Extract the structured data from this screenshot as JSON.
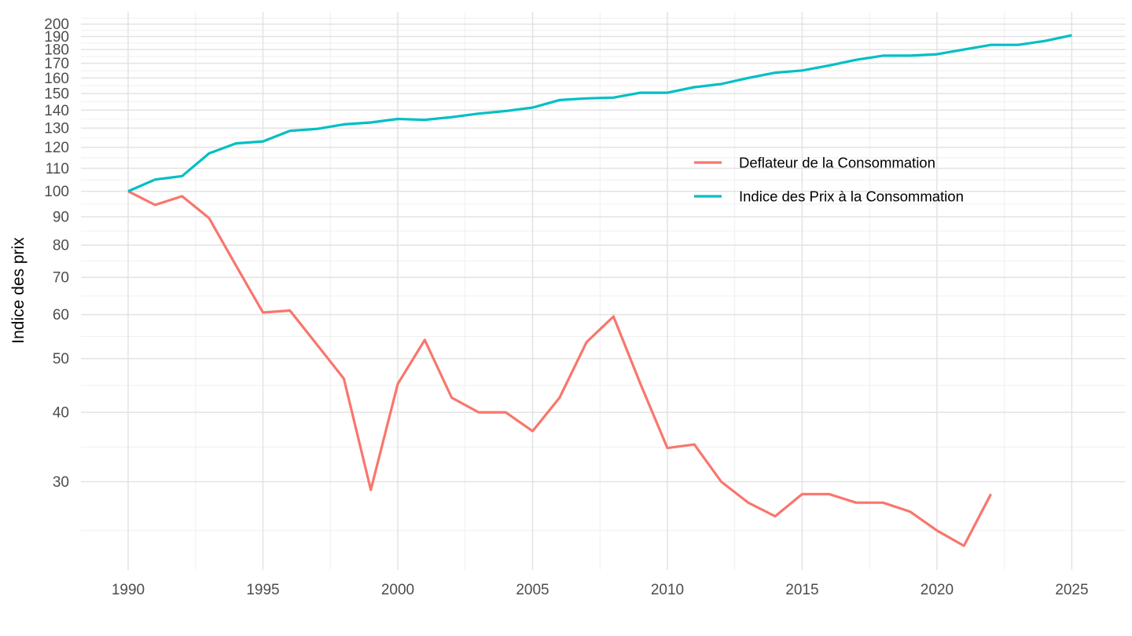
{
  "figure": {
    "y_axis_title": "Indice des prix",
    "background_color": "#FFFFFF",
    "gridline_major_color": "#E3E3E3",
    "gridline_minor_color": "#EEEEEE",
    "axis_text_color": "#4D4D4D",
    "legend_text_color": "#000000"
  },
  "legend": {
    "items": [
      {
        "label": "Deflateur de la Consommation",
        "color": "#F8766D"
      },
      {
        "label": "Indice des Prix à la Consommation",
        "color": "#00BFC4"
      }
    ]
  },
  "chart_data": {
    "type": "line",
    "title": "",
    "xlabel": "",
    "ylabel": "Indice des prix",
    "y_scale": "log10",
    "grid": true,
    "legend_position": "inside-right-upper",
    "x_ticks": [
      1990,
      1995,
      2000,
      2005,
      2010,
      2015,
      2020,
      2025
    ],
    "y_ticks": [
      30,
      40,
      50,
      60,
      70,
      80,
      90,
      100,
      110,
      120,
      130,
      140,
      150,
      160,
      170,
      180,
      190,
      200
    ],
    "x_range_years": [
      1988.25,
      2027.0
    ],
    "y_range": [
      20.8,
      210.5
    ],
    "series": [
      {
        "name": "Deflateur de la Consommation",
        "color": "#F8766D",
        "x": [
          1990,
          1991,
          1992,
          1993,
          1994,
          1995,
          1996,
          1997,
          1998,
          1999,
          2000,
          2001,
          2002,
          2003,
          2004,
          2005,
          2006,
          2007,
          2008,
          2009,
          2010,
          2011,
          2012,
          2013,
          2014,
          2015,
          2016,
          2017,
          2018,
          2019,
          2020,
          2021,
          2022
        ],
        "values": [
          100,
          94.5,
          98,
          89.5,
          73.5,
          60.5,
          61,
          53,
          46,
          29,
          45,
          54,
          42.5,
          40,
          40,
          37,
          42.5,
          53.5,
          59.5,
          45,
          34.5,
          35,
          30,
          27.5,
          26,
          28.5,
          28.5,
          27.5,
          27.5,
          26.5,
          24.5,
          23,
          28.5
        ]
      },
      {
        "name": "Indice des Prix à la Consommation",
        "color": "#00BFC4",
        "x": [
          1990,
          1991,
          1992,
          1993,
          1994,
          1995,
          1996,
          1997,
          1998,
          1999,
          2000,
          2001,
          2002,
          2003,
          2004,
          2005,
          2006,
          2007,
          2008,
          2009,
          2010,
          2011,
          2012,
          2013,
          2014,
          2015,
          2016,
          2017,
          2018,
          2019,
          2020,
          2021,
          2022,
          2023,
          2024,
          2025
        ],
        "values": [
          100,
          105,
          106.5,
          117,
          122,
          123,
          128.5,
          129.5,
          132,
          133,
          135,
          134.5,
          136,
          138,
          139.5,
          141.5,
          146,
          147,
          147.5,
          150.5,
          150.5,
          154,
          156,
          160,
          163.5,
          165,
          168.5,
          172.5,
          175.5,
          175.5,
          176.5,
          180,
          183.5,
          183.5,
          186.5,
          191
        ]
      }
    ]
  }
}
